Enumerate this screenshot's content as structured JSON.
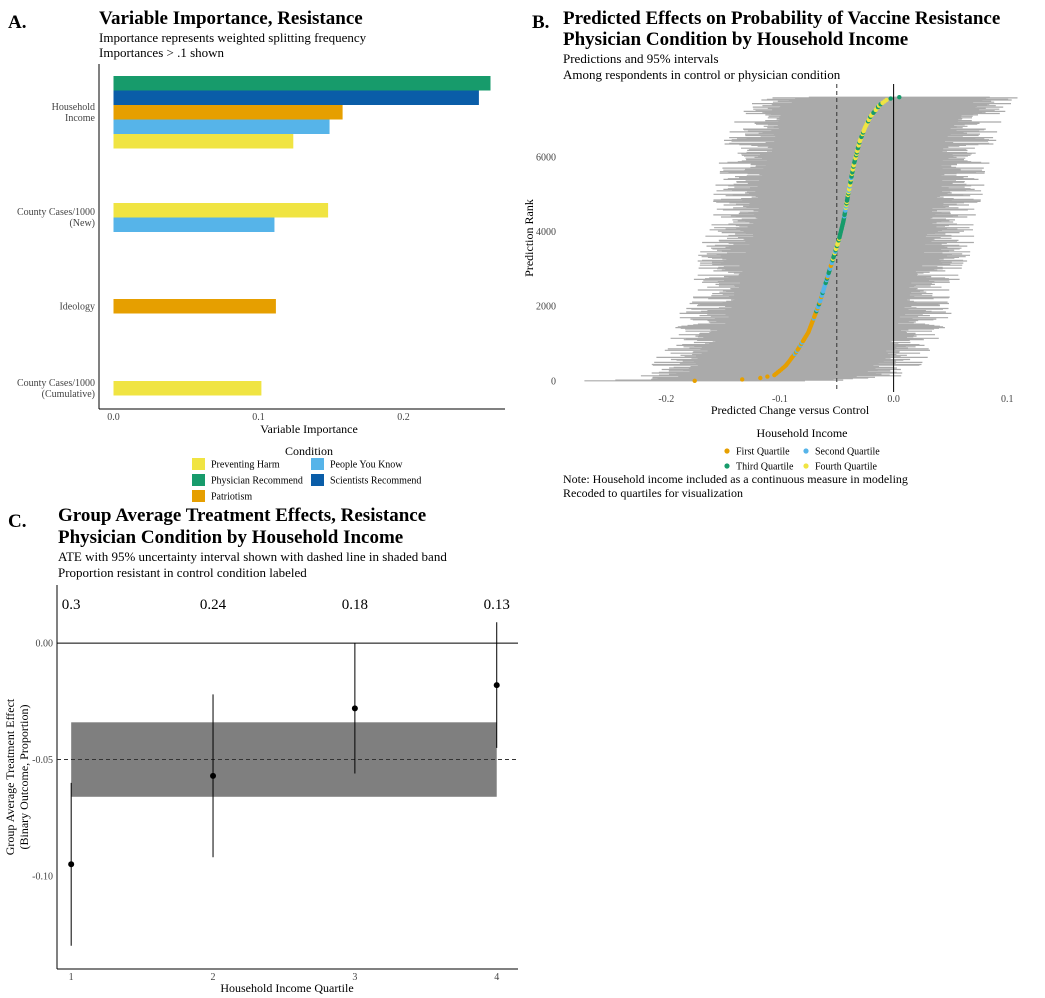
{
  "colors": {
    "preventing_harm": "#F0E442",
    "physician_recommend": "#179B6B",
    "patriotism": "#E69F00",
    "people_you_know": "#56B4E9",
    "scientists_recommend": "#0A5DA8",
    "interval_gray": "#AAAAAA",
    "band_gray": "#7F7F7F"
  },
  "panelA": {
    "label": "A.",
    "title": "Variable Importance, Resistance",
    "subtitle1": "Importance represents weighted splitting frequency",
    "subtitle2": "Importances > .1 shown",
    "xlabel": "Variable Importance",
    "legend_title": "Condition",
    "chart_data": {
      "type": "bar",
      "orientation": "horizontal",
      "xlim": [
        -0.01,
        0.27
      ],
      "xticks": [
        0.0,
        0.1,
        0.2
      ],
      "xtick_labels": [
        "0.0",
        "0.1",
        "0.2"
      ],
      "groups": [
        {
          "label_lines": [
            "Household",
            "Income"
          ],
          "bars": [
            {
              "condition": "Physician Recommend",
              "value": 0.26,
              "color_key": "physician_recommend"
            },
            {
              "condition": "Scientists Recommend",
              "value": 0.252,
              "color_key": "scientists_recommend"
            },
            {
              "condition": "Patriotism",
              "value": 0.158,
              "color_key": "patriotism"
            },
            {
              "condition": "People You Know",
              "value": 0.149,
              "color_key": "people_you_know"
            },
            {
              "condition": "Preventing Harm",
              "value": 0.124,
              "color_key": "preventing_harm"
            }
          ]
        },
        {
          "label_lines": [
            "County Cases/1000",
            "(New)"
          ],
          "bars": [
            {
              "condition": "Preventing Harm",
              "value": 0.148,
              "color_key": "preventing_harm"
            },
            {
              "condition": "People You Know",
              "value": 0.111,
              "color_key": "people_you_know"
            }
          ]
        },
        {
          "label_lines": [
            "Ideology"
          ],
          "bars": [
            {
              "condition": "Patriotism",
              "value": 0.112,
              "color_key": "patriotism"
            }
          ]
        },
        {
          "label_lines": [
            "County Cases/1000",
            "(Cumulative)"
          ],
          "bars": [
            {
              "condition": "Preventing Harm",
              "value": 0.102,
              "color_key": "preventing_harm"
            }
          ]
        }
      ],
      "legend": [
        {
          "label": "Preventing Harm",
          "color_key": "preventing_harm"
        },
        {
          "label": "People You Know",
          "color_key": "people_you_know"
        },
        {
          "label": "Physician Recommend",
          "color_key": "physician_recommend"
        },
        {
          "label": "Scientists Recommend",
          "color_key": "scientists_recommend"
        },
        {
          "label": "Patriotism",
          "color_key": "patriotism"
        }
      ]
    }
  },
  "panelB": {
    "label": "B.",
    "title1": "Predicted Effects on Probability of Vaccine Resistance",
    "title2": "Physician Condition by Household Income",
    "subtitle1": "Predictions and 95% intervals",
    "subtitle2": "Among respondents in control or physician condition",
    "xlabel": "Predicted Change versus Control",
    "ylabel": "Prediction Rank",
    "legend_title": "Household Income",
    "note1": "Note: Household income included as a continuous measure in modeling",
    "note2": "Recoded to quartiles for visualization",
    "chart_data": {
      "type": "scatter",
      "description_points": "sorted individual predictions with 95% intervals",
      "n_predictions": 7600,
      "xlim": [
        -0.29,
        0.12
      ],
      "ylim": [
        -300,
        7900
      ],
      "xticks": [
        -0.2,
        -0.1,
        0.0,
        0.1
      ],
      "xtick_labels": [
        "-0.2",
        "-0.1",
        "0.0",
        "0.1"
      ],
      "yticks": [
        0,
        2000,
        4000,
        6000
      ],
      "ytick_labels": [
        "0",
        "2000",
        "4000",
        "6000"
      ],
      "mean_effect": -0.05,
      "zero_line": 0.0,
      "curve": [
        [
          -0.175,
          0
        ],
        [
          -0.15,
          10
        ],
        [
          -0.12,
          60
        ],
        [
          -0.105,
          150
        ],
        [
          -0.095,
          400
        ],
        [
          -0.085,
          800
        ],
        [
          -0.075,
          1300
        ],
        [
          -0.065,
          2100
        ],
        [
          -0.058,
          2800
        ],
        [
          -0.052,
          3400
        ],
        [
          -0.048,
          3800
        ],
        [
          -0.044,
          4300
        ],
        [
          -0.04,
          5000
        ],
        [
          -0.035,
          5800
        ],
        [
          -0.03,
          6400
        ],
        [
          -0.025,
          6800
        ],
        [
          -0.02,
          7100
        ],
        [
          -0.012,
          7400
        ],
        [
          -0.005,
          7550
        ],
        [
          0.005,
          7600
        ],
        [
          0.012,
          7620
        ]
      ],
      "interval_halfwidth": 0.1,
      "legend": [
        {
          "label": "First Quartile",
          "color_key": "patriotism"
        },
        {
          "label": "Second Quartile",
          "color_key": "people_you_know"
        },
        {
          "label": "Third Quartile",
          "color_key": "physician_recommend"
        },
        {
          "label": "Fourth Quartile",
          "color_key": "preventing_harm"
        }
      ]
    }
  },
  "panelC": {
    "label": "C.",
    "title1": "Group Average Treatment Effects, Resistance",
    "title2": "Physician Condition by Household Income",
    "subtitle1": "ATE with 95% uncertainty interval shown with dashed line in shaded band",
    "subtitle2": "Proportion resistant in control condition labeled",
    "xlabel": "Household Income Quartile",
    "ylabel1": "Group Average Treatment Effect",
    "ylabel2": "(Binary Outcome, Proportion)",
    "chart_data": {
      "type": "scatter",
      "xlim": [
        0.9,
        4.15
      ],
      "ylim": [
        -0.14,
        0.025
      ],
      "xticks": [
        1,
        2,
        3,
        4
      ],
      "xtick_labels": [
        "1",
        "2",
        "3",
        "4"
      ],
      "yticks": [
        0.0,
        -0.05,
        -0.1
      ],
      "ytick_labels": [
        "0.00",
        "-0.05",
        "-0.10"
      ],
      "points": [
        {
          "x": 1,
          "y": -0.095,
          "lo": -0.13,
          "hi": -0.06,
          "label": "0.3"
        },
        {
          "x": 2,
          "y": -0.057,
          "lo": -0.092,
          "hi": -0.022,
          "label": "0.24"
        },
        {
          "x": 3,
          "y": -0.028,
          "lo": -0.056,
          "hi": 0.0,
          "label": "0.18"
        },
        {
          "x": 4,
          "y": -0.018,
          "lo": -0.045,
          "hi": 0.009,
          "label": "0.13"
        }
      ],
      "ate": -0.05,
      "ate_lo": -0.066,
      "ate_hi": -0.034,
      "zero_line": 0.0
    }
  }
}
